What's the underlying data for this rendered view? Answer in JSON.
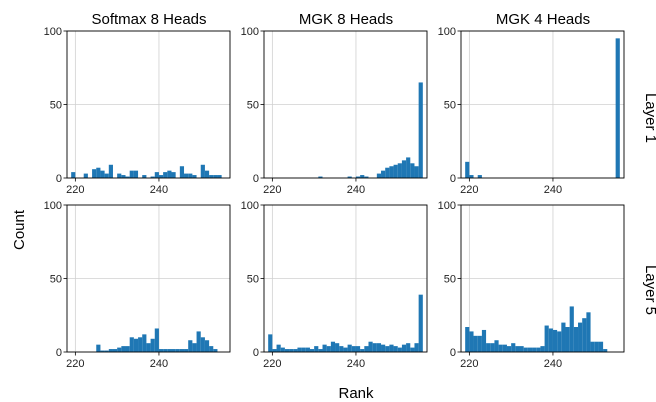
{
  "chart_data": {
    "type": "bar",
    "layout": "small-multiples histogram grid",
    "xlabel": "Rank",
    "ylabel": "Count",
    "bar_color": "#1f77b4",
    "grid": true,
    "columns": [
      "Softmax 8 Heads",
      "MGK 8 Heads",
      "MGK 4 Heads"
    ],
    "rows": [
      "Layer 1",
      "Layer 5"
    ],
    "x_ticks": [
      "220",
      "240"
    ],
    "y_ticks": [
      "0",
      "50",
      "100"
    ],
    "ylim": [
      0,
      100
    ],
    "bin_width": 1,
    "panels": [
      {
        "row": "Layer 1",
        "column": "Softmax 8 Heads",
        "xlim": [
          218,
          257
        ],
        "bins": [
          [
            219,
            4
          ],
          [
            222,
            3
          ],
          [
            224,
            6
          ],
          [
            225,
            7
          ],
          [
            226,
            5
          ],
          [
            227,
            3
          ],
          [
            228,
            9
          ],
          [
            230,
            3
          ],
          [
            231,
            2
          ],
          [
            232,
            1
          ],
          [
            233,
            5
          ],
          [
            234,
            5
          ],
          [
            236,
            2
          ],
          [
            238,
            1
          ],
          [
            239,
            4
          ],
          [
            240,
            2
          ],
          [
            241,
            4
          ],
          [
            242,
            5
          ],
          [
            243,
            4
          ],
          [
            245,
            8
          ],
          [
            246,
            3
          ],
          [
            247,
            3
          ],
          [
            248,
            2
          ],
          [
            250,
            9
          ],
          [
            251,
            5
          ],
          [
            252,
            2
          ],
          [
            253,
            2
          ],
          [
            254,
            2
          ]
        ]
      },
      {
        "row": "Layer 1",
        "column": "MGK 8 Heads",
        "xlim": [
          218,
          257
        ],
        "bins": [
          [
            231,
            1
          ],
          [
            238,
            1
          ],
          [
            240,
            1
          ],
          [
            241,
            2
          ],
          [
            242,
            1
          ],
          [
            245,
            3
          ],
          [
            246,
            5
          ],
          [
            247,
            7
          ],
          [
            248,
            8
          ],
          [
            249,
            9
          ],
          [
            250,
            10
          ],
          [
            251,
            12
          ],
          [
            252,
            14
          ],
          [
            253,
            10
          ],
          [
            254,
            8
          ],
          [
            255,
            65
          ]
        ]
      },
      {
        "row": "Layer 1",
        "column": "MGK 4 Heads",
        "xlim": [
          218,
          257
        ],
        "bins": [
          [
            219,
            11
          ],
          [
            220,
            2
          ],
          [
            222,
            2
          ],
          [
            255,
            95
          ]
        ]
      },
      {
        "row": "Layer 5",
        "column": "Softmax 8 Heads",
        "xlim": [
          218,
          257
        ],
        "bins": [
          [
            225,
            5
          ],
          [
            226,
            1
          ],
          [
            227,
            1
          ],
          [
            228,
            2
          ],
          [
            229,
            2
          ],
          [
            230,
            3
          ],
          [
            231,
            4
          ],
          [
            232,
            4
          ],
          [
            233,
            10
          ],
          [
            234,
            9
          ],
          [
            235,
            10
          ],
          [
            236,
            12
          ],
          [
            237,
            6
          ],
          [
            238,
            9
          ],
          [
            239,
            16
          ],
          [
            240,
            2
          ],
          [
            241,
            2
          ],
          [
            242,
            2
          ],
          [
            243,
            2
          ],
          [
            244,
            2
          ],
          [
            245,
            2
          ],
          [
            246,
            2
          ],
          [
            247,
            8
          ],
          [
            248,
            6
          ],
          [
            249,
            14
          ],
          [
            250,
            10
          ],
          [
            251,
            8
          ],
          [
            252,
            4
          ],
          [
            253,
            2
          ]
        ]
      },
      {
        "row": "Layer 5",
        "column": "MGK 8 Heads",
        "xlim": [
          218,
          257
        ],
        "bins": [
          [
            219,
            12
          ],
          [
            220,
            2
          ],
          [
            221,
            5
          ],
          [
            222,
            3
          ],
          [
            223,
            2
          ],
          [
            224,
            2
          ],
          [
            225,
            2
          ],
          [
            226,
            3
          ],
          [
            227,
            3
          ],
          [
            228,
            3
          ],
          [
            229,
            2
          ],
          [
            230,
            4
          ],
          [
            231,
            2
          ],
          [
            232,
            5
          ],
          [
            233,
            4
          ],
          [
            234,
            7
          ],
          [
            235,
            6
          ],
          [
            236,
            4
          ],
          [
            237,
            3
          ],
          [
            238,
            5
          ],
          [
            239,
            4
          ],
          [
            240,
            4
          ],
          [
            241,
            2
          ],
          [
            242,
            4
          ],
          [
            243,
            7
          ],
          [
            244,
            6
          ],
          [
            245,
            6
          ],
          [
            246,
            5
          ],
          [
            247,
            4
          ],
          [
            248,
            5
          ],
          [
            249,
            4
          ],
          [
            250,
            3
          ],
          [
            251,
            5
          ],
          [
            252,
            6
          ],
          [
            253,
            3
          ],
          [
            254,
            6
          ],
          [
            255,
            39
          ]
        ]
      },
      {
        "row": "Layer 5",
        "column": "MGK 4 Heads",
        "xlim": [
          218,
          257
        ],
        "bins": [
          [
            219,
            17
          ],
          [
            220,
            14
          ],
          [
            221,
            11
          ],
          [
            222,
            11
          ],
          [
            223,
            15
          ],
          [
            224,
            6
          ],
          [
            225,
            6
          ],
          [
            226,
            8
          ],
          [
            227,
            5
          ],
          [
            228,
            5
          ],
          [
            229,
            4
          ],
          [
            230,
            6
          ],
          [
            231,
            4
          ],
          [
            232,
            4
          ],
          [
            233,
            3
          ],
          [
            234,
            3
          ],
          [
            235,
            3
          ],
          [
            236,
            3
          ],
          [
            237,
            4
          ],
          [
            238,
            18
          ],
          [
            239,
            16
          ],
          [
            240,
            15
          ],
          [
            241,
            14
          ],
          [
            242,
            20
          ],
          [
            243,
            17
          ],
          [
            244,
            31
          ],
          [
            245,
            17
          ],
          [
            246,
            20
          ],
          [
            247,
            23
          ],
          [
            248,
            27
          ],
          [
            249,
            7
          ],
          [
            250,
            7
          ],
          [
            251,
            7
          ],
          [
            252,
            2
          ]
        ]
      }
    ]
  }
}
